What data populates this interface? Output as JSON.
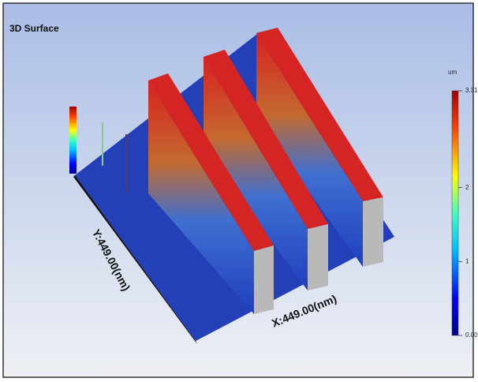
{
  "title": "3D Surface",
  "axes": {
    "x_label": "X:449.00(nm)",
    "y_label": "Y:449.00(nm)"
  },
  "colorbar": {
    "unit": "um",
    "lim": [
      0,
      3.31
    ],
    "ticks": [
      {
        "value": 0,
        "label": "0.00"
      },
      1,
      2,
      3.31
    ]
  }
}
